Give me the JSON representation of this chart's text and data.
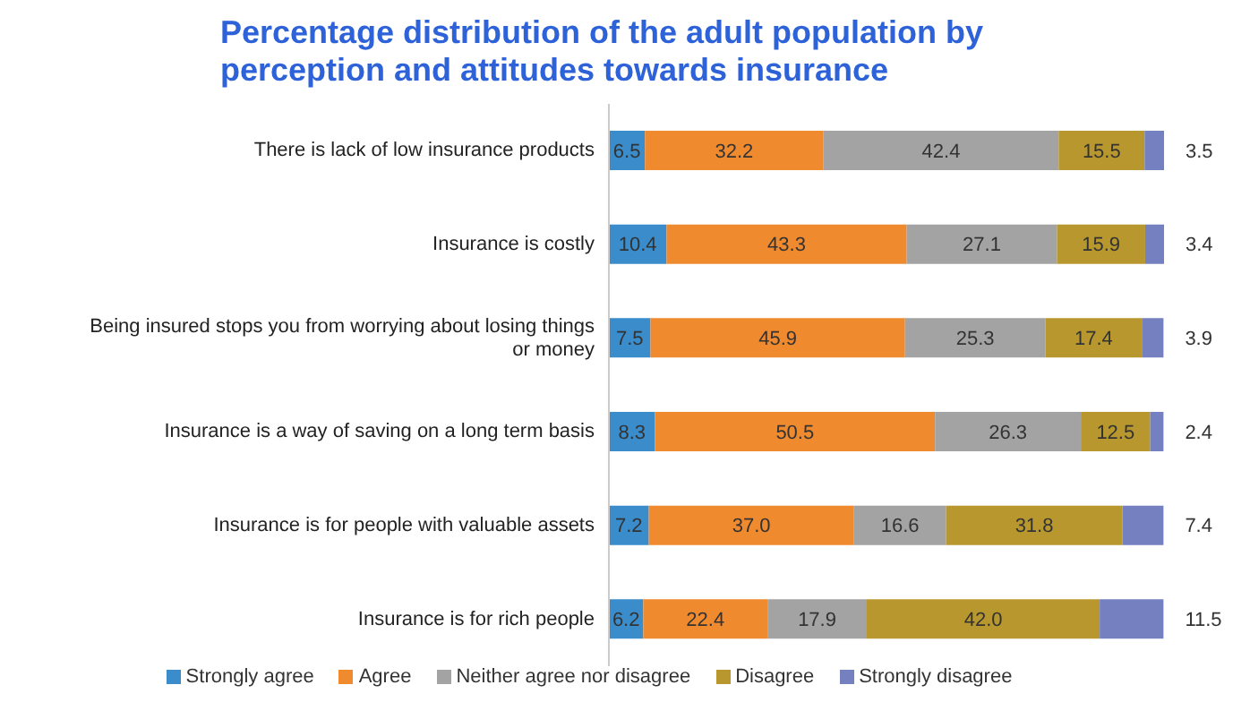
{
  "chart_data": {
    "type": "bar",
    "orientation": "horizontal",
    "stacked": true,
    "title": "Percentage distribution of the adult population by perception and attitudes towards insurance",
    "categories": [
      "There is lack of low insurance products",
      "Insurance is costly",
      "Being insured stops you from worrying about losing things or money",
      "Insurance is a way of saving on a long term basis",
      "Insurance is for people with valuable assets",
      "Insurance is for rich people"
    ],
    "series": [
      {
        "name": "Strongly agree",
        "color": "#3a8ccb",
        "values": [
          6.5,
          10.4,
          7.5,
          8.3,
          7.2,
          6.2
        ],
        "value_labels": [
          "6.5",
          "10.4",
          "7.5",
          "8.3",
          "7.2",
          "6.2"
        ]
      },
      {
        "name": "Agree",
        "color": "#f08a2e",
        "values": [
          32.2,
          43.3,
          45.9,
          50.5,
          37.0,
          22.4
        ],
        "value_labels": [
          "32.2",
          "43.3",
          "45.9",
          "50.5",
          "37.0",
          "22.4"
        ]
      },
      {
        "name": "Neither agree nor disagree",
        "color": "#a3a3a3",
        "values": [
          42.4,
          27.1,
          25.3,
          26.3,
          16.6,
          17.9
        ],
        "value_labels": [
          "42.4",
          "27.1",
          "25.3",
          "26.3",
          "16.6",
          "17.9"
        ]
      },
      {
        "name": "Disagree",
        "color": "#b8982e",
        "values": [
          15.5,
          15.9,
          17.4,
          12.5,
          31.8,
          42.0
        ],
        "value_labels": [
          "15.5",
          "15.9",
          "17.4",
          "12.5",
          "31.8",
          "42.0"
        ]
      },
      {
        "name": "Strongly disagree",
        "color": "#7480bf",
        "values": [
          3.5,
          3.4,
          3.9,
          2.4,
          7.4,
          11.5
        ],
        "value_labels": [
          "3.5",
          "3.4",
          "3.9",
          "2.4",
          "7.4",
          "11.5"
        ]
      }
    ],
    "xlim": [
      0,
      100.1
    ],
    "tick_labels": "y",
    "legend": "bottom"
  }
}
